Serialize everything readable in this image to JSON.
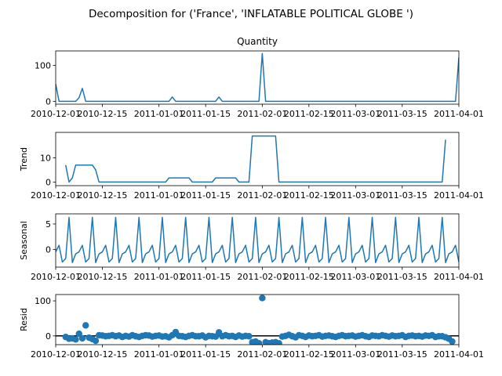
{
  "figure": {
    "suptitle": "Decomposition for ('France', 'INFLATABLE POLITICAL GLOBE ')"
  },
  "chart_data": [
    {
      "type": "line",
      "panel": "observed",
      "title": "Quantity",
      "ylabel": "",
      "xlim": [
        "2010-12-01",
        "2011-04-01"
      ],
      "ylim": [
        -8,
        140
      ],
      "yticks": [
        0,
        100
      ],
      "xticks": [
        "2010-12-01",
        "2010-12-15",
        "2011-01-01",
        "2011-01-15",
        "2011-02-01",
        "2011-02-15",
        "2011-03-01",
        "2011-03-15",
        "2011-04-01"
      ],
      "xtick_labels": [
        "2010-12-01",
        "2010-12-15",
        "2011-01-01",
        "2011-01-15",
        "2011-02-01",
        "2011-02-15",
        "2011-03-01",
        "2011-03-15",
        "2011-04-01"
      ],
      "color": "#1f77b4",
      "series": [
        {
          "x": [
            "2010-12-01",
            "2010-12-02",
            "2010-12-07",
            "2010-12-08",
            "2010-12-09",
            "2010-12-10",
            "2011-01-04",
            "2011-01-05",
            "2011-01-06",
            "2011-01-18",
            "2011-01-19",
            "2011-01-20",
            "2011-01-31",
            "2011-02-01",
            "2011-02-02",
            "2011-03-31",
            "2011-04-01"
          ],
          "y": [
            48,
            0,
            0,
            10,
            36,
            0,
            0,
            12,
            0,
            0,
            12,
            0,
            0,
            133,
            0,
            0,
            122
          ]
        }
      ]
    },
    {
      "type": "line",
      "panel": "trend",
      "title": "",
      "ylabel": "Trend",
      "xlim": [
        "2010-12-01",
        "2011-04-01"
      ],
      "ylim": [
        -1.5,
        20.5
      ],
      "yticks": [
        0,
        10
      ],
      "xticks": [
        "2010-12-01",
        "2010-12-15",
        "2011-01-01",
        "2011-01-15",
        "2011-02-01",
        "2011-02-15",
        "2011-03-01",
        "2011-03-15",
        "2011-04-01"
      ],
      "xtick_labels": [
        "2010-12-01",
        "2010-12-15",
        "2011-01-01",
        "2011-01-15",
        "2011-02-01",
        "2011-02-15",
        "2011-03-01",
        "2011-03-15",
        "2011-04-01"
      ],
      "color": "#1f77b4",
      "series": [
        {
          "x": [
            "2010-12-04",
            "2010-12-05",
            "2010-12-06",
            "2010-12-07",
            "2010-12-12",
            "2010-12-13",
            "2010-12-14",
            "2011-01-03",
            "2011-01-04",
            "2011-01-10",
            "2011-01-11",
            "2011-01-17",
            "2011-01-18",
            "2011-01-24",
            "2011-01-25",
            "2011-01-28",
            "2011-01-29",
            "2011-02-05",
            "2011-02-06",
            "2011-03-27",
            "2011-03-28"
          ],
          "y": [
            7,
            0,
            1.7,
            7,
            7,
            5,
            0,
            0,
            1.7,
            1.7,
            0,
            0,
            1.7,
            1.7,
            0,
            0,
            19,
            19,
            0,
            0,
            17.5
          ]
        }
      ]
    },
    {
      "type": "line",
      "panel": "seasonal",
      "title": "",
      "ylabel": "Seasonal",
      "xlim": [
        "2010-12-01",
        "2011-04-01"
      ],
      "ylim": [
        -3.5,
        7
      ],
      "yticks": [
        0,
        5
      ],
      "xticks": [
        "2010-12-01",
        "2010-12-15",
        "2011-01-01",
        "2011-01-15",
        "2011-02-01",
        "2011-02-15",
        "2011-03-01",
        "2011-03-15",
        "2011-04-01"
      ],
      "xtick_labels": [
        "2010-12-01",
        "2010-12-15",
        "2011-01-01",
        "2011-01-15",
        "2011-02-01",
        "2011-02-15",
        "2011-03-01",
        "2011-03-15",
        "2011-04-01"
      ],
      "color": "#1f77b4",
      "period": 7,
      "start": "2010-12-01",
      "end": "2011-04-01",
      "pattern": [
        -0.5,
        0.8,
        -2.5,
        -1.8,
        6.3,
        -2.6,
        -0.9
      ]
    },
    {
      "type": "scatter",
      "panel": "resid",
      "title": "",
      "ylabel": "Resid",
      "xlim": [
        "2010-12-01",
        "2011-04-01"
      ],
      "ylim": [
        -25,
        118
      ],
      "yticks": [
        0,
        100
      ],
      "zero_line": true,
      "xticks": [
        "2010-12-01",
        "2010-12-15",
        "2011-01-01",
        "2011-01-15",
        "2011-02-01",
        "2011-02-15",
        "2011-03-01",
        "2011-03-15",
        "2011-04-01"
      ],
      "xtick_labels": [
        "2010-12-01",
        "2010-12-15",
        "2011-01-01",
        "2011-01-15",
        "2011-02-01",
        "2011-02-15",
        "2011-03-01",
        "2011-03-15",
        "2011-04-01"
      ],
      "color": "#1f77b4",
      "series": [
        {
          "x": [
            "2010-12-04",
            "2010-12-05",
            "2010-12-06",
            "2010-12-07",
            "2010-12-08",
            "2010-12-09",
            "2010-12-10",
            "2010-12-11",
            "2010-12-12",
            "2010-12-13",
            "2010-12-14",
            "2010-12-15",
            "2010-12-16",
            "2010-12-17",
            "2010-12-18",
            "2010-12-19",
            "2010-12-20",
            "2010-12-21",
            "2010-12-22",
            "2010-12-23",
            "2010-12-24",
            "2010-12-25",
            "2010-12-26",
            "2010-12-27",
            "2010-12-28",
            "2010-12-29",
            "2010-12-30",
            "2010-12-31",
            "2011-01-01",
            "2011-01-02",
            "2011-01-03",
            "2011-01-04",
            "2011-01-05",
            "2011-01-06",
            "2011-01-07",
            "2011-01-08",
            "2011-01-09",
            "2011-01-10",
            "2011-01-11",
            "2011-01-12",
            "2011-01-13",
            "2011-01-14",
            "2011-01-15",
            "2011-01-16",
            "2011-01-17",
            "2011-01-18",
            "2011-01-19",
            "2011-01-20",
            "2011-01-21",
            "2011-01-22",
            "2011-01-23",
            "2011-01-24",
            "2011-01-25",
            "2011-01-26",
            "2011-01-27",
            "2011-01-28",
            "2011-01-29",
            "2011-01-30",
            "2011-01-31",
            "2011-02-01",
            "2011-02-02",
            "2011-02-03",
            "2011-02-04",
            "2011-02-05",
            "2011-02-06",
            "2011-02-07",
            "2011-02-08",
            "2011-02-09",
            "2011-02-10",
            "2011-02-11",
            "2011-02-12",
            "2011-02-13",
            "2011-02-14",
            "2011-02-15",
            "2011-02-16",
            "2011-02-17",
            "2011-02-18",
            "2011-02-19",
            "2011-02-20",
            "2011-02-21",
            "2011-02-22",
            "2011-02-23",
            "2011-02-24",
            "2011-02-25",
            "2011-02-26",
            "2011-02-27",
            "2011-02-28",
            "2011-03-01",
            "2011-03-02",
            "2011-03-03",
            "2011-03-04",
            "2011-03-05",
            "2011-03-06",
            "2011-03-07",
            "2011-03-08",
            "2011-03-09",
            "2011-03-10",
            "2011-03-11",
            "2011-03-12",
            "2011-03-13",
            "2011-03-14",
            "2011-03-15",
            "2011-03-16",
            "2011-03-17",
            "2011-03-18",
            "2011-03-19",
            "2011-03-20",
            "2011-03-21",
            "2011-03-22",
            "2011-03-23",
            "2011-03-24",
            "2011-03-25",
            "2011-03-26",
            "2011-03-27",
            "2011-03-28",
            "2011-03-29",
            "2011-03-30"
          ],
          "y": [
            -3,
            -8,
            -7,
            -10,
            6,
            -7,
            30,
            -5,
            -9,
            -14,
            2,
            1,
            -1,
            0,
            2,
            -1,
            1,
            -3,
            0,
            -2,
            2,
            -1,
            -3,
            0,
            2,
            1,
            -2,
            0,
            1,
            -2,
            -1,
            -4,
            2,
            11,
            0,
            -1,
            -3,
            0,
            2,
            -1,
            -1,
            1,
            -4,
            0,
            -1,
            -2,
            10,
            -1,
            2,
            -1,
            0,
            -3,
            1,
            -2,
            0,
            -1,
            -18,
            -16,
            -21,
            108,
            -18,
            -21,
            -19,
            -18,
            -21,
            -2,
            0,
            3,
            -1,
            -4,
            2,
            0,
            -3,
            1,
            -1,
            0,
            2,
            -2,
            0,
            1,
            -1,
            -3,
            0,
            2,
            -1,
            0,
            1,
            -2,
            0,
            2,
            -1,
            -3,
            1,
            0,
            -1,
            2,
            0,
            -2,
            1,
            -1,
            0,
            2,
            -3,
            0,
            1,
            -1,
            0,
            -2,
            1,
            0,
            2,
            -3,
            -1,
            -1,
            -4,
            -8,
            -16
          ]
        }
      ]
    }
  ]
}
